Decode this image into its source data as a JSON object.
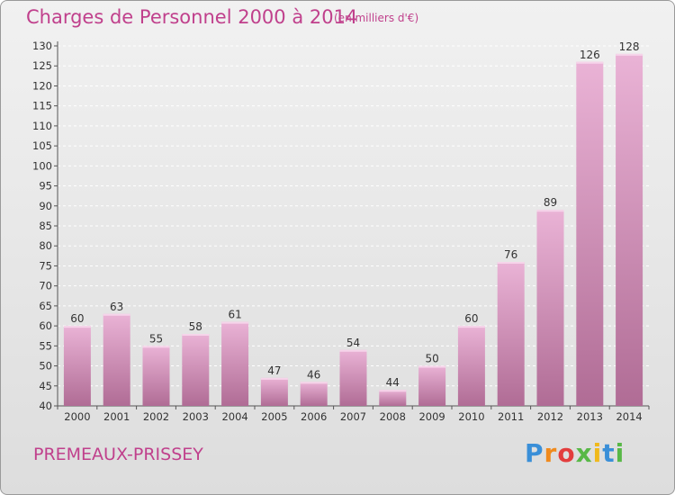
{
  "header": {
    "title": "Charges de Personnel 2000 à 2014",
    "subtitle": "(en milliers d'€)"
  },
  "footer": {
    "city": "PREMEAUX-PRISSEY",
    "logo": "Proxiti"
  },
  "colors": {
    "bar_top": "#eab3d6",
    "bar_bottom": "#b06c95",
    "text_accent": "#c0408c"
  },
  "chart_data": {
    "type": "bar",
    "title": "Charges de Personnel 2000 à 2014",
    "subtitle": "(en milliers d'€)",
    "categories": [
      "2000",
      "2001",
      "2002",
      "2003",
      "2004",
      "2005",
      "2006",
      "2007",
      "2008",
      "2009",
      "2010",
      "2011",
      "2012",
      "2013",
      "2014"
    ],
    "values": [
      60,
      63,
      55,
      58,
      61,
      47,
      46,
      54,
      44,
      50,
      60,
      76,
      89,
      126,
      128
    ],
    "ylim": [
      40,
      130
    ],
    "yticks": [
      40,
      45,
      50,
      55,
      60,
      65,
      70,
      75,
      80,
      85,
      90,
      95,
      100,
      105,
      110,
      115,
      120,
      125,
      130
    ],
    "grid": true,
    "xlabel": "",
    "ylabel": ""
  }
}
